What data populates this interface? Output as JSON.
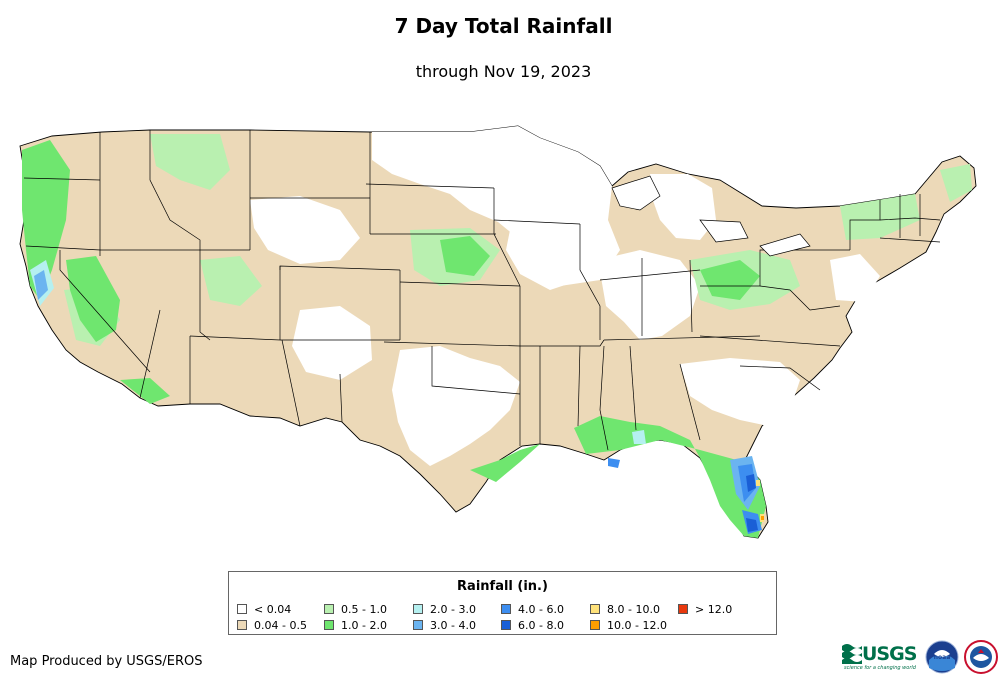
{
  "header": {
    "title": "7 Day Total Rainfall",
    "subtitle": "through Nov 19, 2023"
  },
  "legend": {
    "title": "Rainfall (in.)",
    "items": [
      {
        "label": "< 0.04",
        "color": "#ffffff"
      },
      {
        "label": "0.04 - 0.5",
        "color": "#ecd9b8"
      },
      {
        "label": "0.5 - 1.0",
        "color": "#b9f0b0"
      },
      {
        "label": "1.0 - 2.0",
        "color": "#6fe66f"
      },
      {
        "label": "2.0 - 3.0",
        "color": "#b5f0f0"
      },
      {
        "label": "3.0 - 4.0",
        "color": "#6bb4f0"
      },
      {
        "label": "4.0 - 6.0",
        "color": "#3d8ef0"
      },
      {
        "label": "6.0 - 8.0",
        "color": "#1a5fd6"
      },
      {
        "label": "8.0 - 10.0",
        "color": "#ffe27a"
      },
      {
        "label": "10.0 - 12.0",
        "color": "#ff9e00"
      },
      {
        "label": "> 12.0",
        "color": "#e8380d"
      }
    ]
  },
  "footer": {
    "credit": "Map Produced by USGS/EROS",
    "usgs_logo_text": "USGS",
    "usgs_tagline": "science for a changing world",
    "noaa_logo_text": "noaa"
  },
  "icons": [
    "usgs-logo-icon",
    "noaa-logo-icon",
    "nws-logo-icon"
  ]
}
